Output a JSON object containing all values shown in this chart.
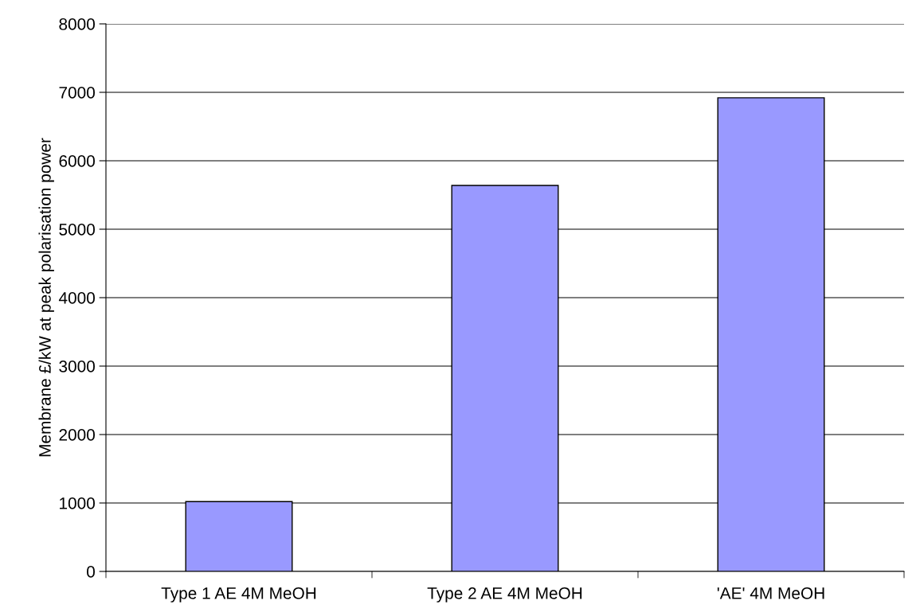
{
  "chart_data": {
    "type": "bar",
    "categories": [
      "Type 1 AE 4M MeOH",
      "Type 2 AE 4M MeOH",
      "'AE' 4M MeOH"
    ],
    "values": [
      1020,
      5640,
      6920
    ],
    "color": "#9999ff",
    "ylabel": "Membrane £/kW at peak polarisation power",
    "ylim": [
      0,
      8000
    ],
    "yticks": [
      0,
      1000,
      2000,
      3000,
      4000,
      5000,
      6000,
      7000,
      8000
    ],
    "grid": "y",
    "legend": false
  }
}
